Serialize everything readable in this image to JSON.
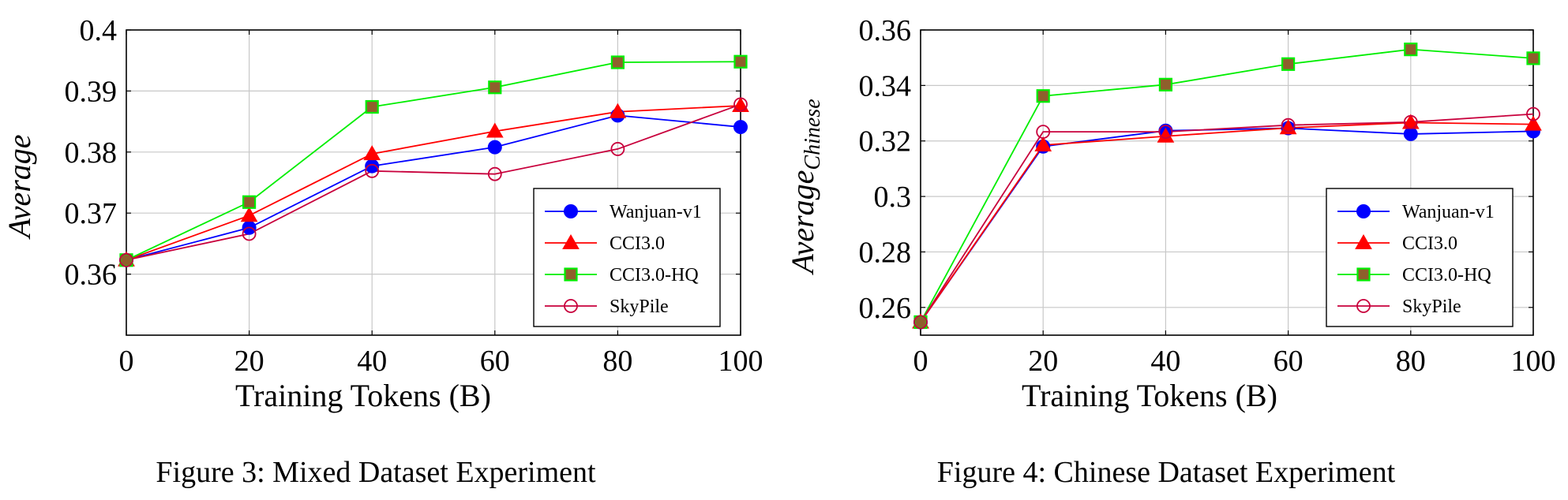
{
  "chart_data": [
    {
      "type": "line",
      "caption": "Figure 3: Mixed Dataset Experiment",
      "xlabel": "Training Tokens (B)",
      "ylabel": "Average",
      "ylabel_sub": "",
      "xlim": [
        0,
        100
      ],
      "ylim": [
        0.35,
        0.4
      ],
      "xticks": [
        0,
        20,
        40,
        60,
        80,
        100
      ],
      "xtick_labels": [
        "0",
        "20",
        "40",
        "60",
        "80",
        "100"
      ],
      "yticks": [
        0.36,
        0.37,
        0.38,
        0.39,
        0.4
      ],
      "ytick_labels": [
        "0.36",
        "0.37",
        "0.38",
        "0.39",
        "0.4"
      ],
      "grid": true,
      "legend_position": "bottom-right",
      "x": [
        0,
        20,
        40,
        60,
        80,
        100
      ],
      "series": [
        {
          "name": "Wanjuan-v1",
          "color": "#0000ff",
          "marker": "filled-circle",
          "values": [
            0.3623,
            0.3676,
            0.3777,
            0.3808,
            0.386,
            0.3841
          ]
        },
        {
          "name": "CCI3.0",
          "color": "#ff0000",
          "marker": "filled-triangle",
          "values": [
            0.3623,
            0.3696,
            0.3797,
            0.3834,
            0.3866,
            0.3876
          ]
        },
        {
          "name": "CCI3.0-HQ",
          "color": "#00ee00",
          "marker": "square",
          "marker_fill": "#8f5f2c",
          "values": [
            0.3623,
            0.3718,
            0.3874,
            0.3906,
            0.3947,
            0.3948
          ]
        },
        {
          "name": "SkyPile",
          "color": "#c8003c",
          "marker": "open-circle",
          "values": [
            0.3623,
            0.3666,
            0.3769,
            0.3764,
            0.3805,
            0.3878
          ]
        }
      ]
    },
    {
      "type": "line",
      "caption": "Figure 4: Chinese Dataset Experiment",
      "xlabel": "Training Tokens (B)",
      "ylabel": "Average",
      "ylabel_sub": "Chinese",
      "xlim": [
        0,
        100
      ],
      "ylim": [
        0.25,
        0.36
      ],
      "xticks": [
        0,
        20,
        40,
        60,
        80,
        100
      ],
      "xtick_labels": [
        "0",
        "20",
        "40",
        "60",
        "80",
        "100"
      ],
      "yticks": [
        0.26,
        0.28,
        0.3,
        0.32,
        0.34,
        0.36
      ],
      "ytick_labels": [
        "0.26",
        "0.28",
        "0.3",
        "0.32",
        "0.34",
        "0.36"
      ],
      "grid": true,
      "legend_position": "bottom-right",
      "x": [
        0,
        20,
        40,
        60,
        80,
        100
      ],
      "series": [
        {
          "name": "Wanjuan-v1",
          "color": "#0000ff",
          "marker": "filled-circle",
          "values": [
            0.2547,
            0.318,
            0.3237,
            0.3246,
            0.3225,
            0.3235
          ]
        },
        {
          "name": "CCI3.0",
          "color": "#ff0000",
          "marker": "filled-triangle",
          "values": [
            0.2547,
            0.3185,
            0.3217,
            0.3247,
            0.3266,
            0.326
          ]
        },
        {
          "name": "CCI3.0-HQ",
          "color": "#00ee00",
          "marker": "square",
          "marker_fill": "#8f5f2c",
          "values": [
            0.2547,
            0.3362,
            0.3403,
            0.3477,
            0.353,
            0.3498
          ]
        },
        {
          "name": "SkyPile",
          "color": "#c8003c",
          "marker": "open-circle",
          "values": [
            0.2547,
            0.3233,
            0.3233,
            0.3257,
            0.3268,
            0.3297
          ]
        }
      ]
    }
  ]
}
